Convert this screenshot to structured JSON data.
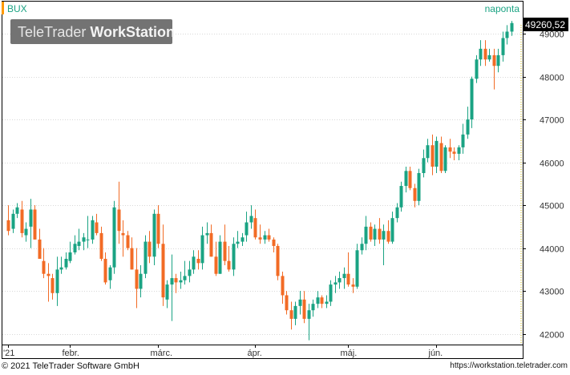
{
  "header": {
    "symbol": "BUX",
    "period": "naponta",
    "last_price": "49260,52"
  },
  "watermark": {
    "brand_light": "TeleTrader ",
    "brand_bold": "WorkStation"
  },
  "footer": {
    "copyright": "© 2021  TeleTrader Software GmbH",
    "url": "https://workstation.teletrader.com"
  },
  "colors": {
    "up": "#1aa383",
    "down": "#f26b25",
    "price_box": "#000000",
    "watermark_bg": "#737373"
  },
  "chart_data": {
    "type": "candlestick",
    "title": "BUX",
    "period": "naponta",
    "y_ticks": [
      42000,
      43000,
      44000,
      45000,
      46000,
      47000,
      48000,
      49000
    ],
    "y_tick_labels": [
      "42000",
      "43000",
      "44000",
      "45000",
      "46000",
      "47000",
      "48000",
      "49000"
    ],
    "ylim": [
      41750,
      49750
    ],
    "x_labels": [
      {
        "label": "'21",
        "index": 0
      },
      {
        "label": "febr.",
        "index": 14
      },
      {
        "label": "márc.",
        "index": 34
      },
      {
        "label": "ápr.",
        "index": 56
      },
      {
        "label": "máj.",
        "index": 77
      },
      {
        "label": "jún.",
        "index": 97
      }
    ],
    "last_value": 49260.52,
    "candles": [
      [
        44650,
        45000,
        44300,
        44400
      ],
      [
        44450,
        44900,
        44350,
        44800
      ],
      [
        44800,
        45050,
        44700,
        44950
      ],
      [
        44900,
        45100,
        44250,
        44350
      ],
      [
        44300,
        44600,
        44150,
        44450
      ],
      [
        44500,
        45150,
        44000,
        44900
      ],
      [
        44900,
        45000,
        44200,
        44200
      ],
      [
        44200,
        44450,
        43750,
        43750
      ],
      [
        43700,
        44000,
        43300,
        43400
      ],
      [
        43400,
        43650,
        42750,
        43350
      ],
      [
        43300,
        43400,
        42800,
        42950
      ],
      [
        42950,
        43800,
        42650,
        43500
      ],
      [
        43500,
        43800,
        43400,
        43550
      ],
      [
        43550,
        43900,
        43500,
        43750
      ],
      [
        43700,
        44150,
        43650,
        43900
      ],
      [
        43900,
        44300,
        43850,
        44100
      ],
      [
        44050,
        44450,
        43950,
        44150
      ],
      [
        44150,
        44350,
        43950,
        44250
      ],
      [
        44200,
        44750,
        44000,
        44200
      ],
      [
        44200,
        44750,
        44100,
        44650
      ],
      [
        44600,
        44800,
        44300,
        44350
      ],
      [
        44350,
        44500,
        43700,
        43750
      ],
      [
        43750,
        43900,
        43150,
        43200
      ],
      [
        43250,
        43600,
        43050,
        43550
      ],
      [
        43550,
        45100,
        43400,
        44950
      ],
      [
        44900,
        45550,
        44100,
        44400
      ],
      [
        44350,
        44650,
        43800,
        44300
      ],
      [
        44300,
        44400,
        43950,
        44000
      ],
      [
        44000,
        44250,
        43500,
        43500
      ],
      [
        43500,
        44000,
        42600,
        43050
      ],
      [
        43050,
        43600,
        42850,
        43400
      ],
      [
        43400,
        44300,
        43300,
        44150
      ],
      [
        44150,
        44400,
        43650,
        43800
      ],
      [
        43800,
        44900,
        43600,
        44800
      ],
      [
        44800,
        45000,
        44000,
        44100
      ],
      [
        44100,
        44550,
        42650,
        42850
      ],
      [
        42800,
        43250,
        42600,
        43150
      ],
      [
        43150,
        43850,
        42300,
        43300
      ],
      [
        43300,
        43400,
        42950,
        43200
      ],
      [
        43200,
        43450,
        43050,
        43250
      ],
      [
        43250,
        43700,
        43150,
        43350
      ],
      [
        43350,
        43700,
        43200,
        43500
      ],
      [
        43500,
        43950,
        43400,
        43800
      ],
      [
        43750,
        43950,
        43500,
        43650
      ],
      [
        43650,
        44500,
        43500,
        44300
      ],
      [
        44300,
        44600,
        44100,
        44350
      ],
      [
        44350,
        44550,
        43800,
        43800
      ],
      [
        43800,
        44150,
        43350,
        43400
      ],
      [
        43400,
        44300,
        43400,
        44150
      ],
      [
        44150,
        44550,
        43600,
        43700
      ],
      [
        43700,
        44050,
        43450,
        43500
      ],
      [
        43500,
        44250,
        43350,
        44100
      ],
      [
        44100,
        44400,
        44000,
        44150
      ],
      [
        44150,
        44350,
        44050,
        44250
      ],
      [
        44300,
        44850,
        44150,
        44600
      ],
      [
        44600,
        45000,
        44450,
        44750
      ],
      [
        44700,
        44900,
        44200,
        44250
      ],
      [
        44250,
        44550,
        44100,
        44200
      ],
      [
        44200,
        44400,
        44100,
        44300
      ],
      [
        44300,
        44450,
        44150,
        44200
      ],
      [
        44200,
        44250,
        43900,
        44050
      ],
      [
        44050,
        44100,
        43250,
        43350
      ],
      [
        43350,
        43450,
        42700,
        42900
      ],
      [
        42900,
        43000,
        42450,
        42550
      ],
      [
        42550,
        42750,
        42100,
        42350
      ],
      [
        42350,
        42750,
        42200,
        42650
      ],
      [
        42650,
        43000,
        42450,
        42800
      ],
      [
        42800,
        43000,
        42250,
        42350
      ],
      [
        42350,
        42700,
        41850,
        42550
      ],
      [
        42550,
        42800,
        42400,
        42700
      ],
      [
        42700,
        43000,
        42600,
        42850
      ],
      [
        42850,
        42900,
        42600,
        42700
      ],
      [
        42700,
        42900,
        42600,
        42750
      ],
      [
        42750,
        43250,
        42650,
        43150
      ],
      [
        43150,
        43350,
        42950,
        43200
      ],
      [
        43200,
        43450,
        43050,
        43300
      ],
      [
        43300,
        43550,
        43050,
        43400
      ],
      [
        43400,
        43900,
        43100,
        43150
      ],
      [
        43150,
        43300,
        42950,
        43100
      ],
      [
        43100,
        44100,
        43050,
        43950
      ],
      [
        43950,
        44250,
        43850,
        44100
      ],
      [
        44100,
        44750,
        43950,
        44500
      ],
      [
        44500,
        44600,
        44150,
        44200
      ],
      [
        44200,
        44550,
        44050,
        44450
      ],
      [
        44450,
        44700,
        44100,
        44200
      ],
      [
        44200,
        44550,
        43600,
        44400
      ],
      [
        44400,
        44650,
        44100,
        44150
      ],
      [
        44150,
        44850,
        44100,
        44700
      ],
      [
        44700,
        45050,
        44600,
        44950
      ],
      [
        44950,
        45550,
        44850,
        45450
      ],
      [
        45450,
        45900,
        45300,
        45800
      ],
      [
        45800,
        45900,
        45350,
        45400
      ],
      [
        45400,
        45500,
        44950,
        45100
      ],
      [
        45100,
        45850,
        45000,
        45750
      ],
      [
        45750,
        46300,
        45650,
        46100
      ],
      [
        46100,
        46550,
        46000,
        46400
      ],
      [
        46400,
        46650,
        45700,
        45900
      ],
      [
        45900,
        46600,
        45750,
        46500
      ],
      [
        46450,
        46600,
        45750,
        45800
      ],
      [
        45800,
        46400,
        45750,
        46350
      ],
      [
        46350,
        46550,
        46100,
        46250
      ],
      [
        46250,
        46350,
        46050,
        46200
      ],
      [
        46200,
        46400,
        46050,
        46350
      ],
      [
        46350,
        46900,
        46200,
        46650
      ],
      [
        46650,
        47300,
        46550,
        47000
      ],
      [
        47000,
        48000,
        46800,
        47950
      ],
      [
        47950,
        48500,
        47850,
        48400
      ],
      [
        48400,
        48850,
        48250,
        48650
      ],
      [
        48650,
        48850,
        48250,
        48400
      ],
      [
        48400,
        48650,
        48350,
        48500
      ],
      [
        48500,
        48650,
        47700,
        48250
      ],
      [
        48250,
        48650,
        48100,
        48500
      ],
      [
        48500,
        49050,
        48350,
        48900
      ],
      [
        48900,
        49200,
        48750,
        49050
      ],
      [
        49050,
        49300,
        48950,
        49250
      ]
    ]
  }
}
